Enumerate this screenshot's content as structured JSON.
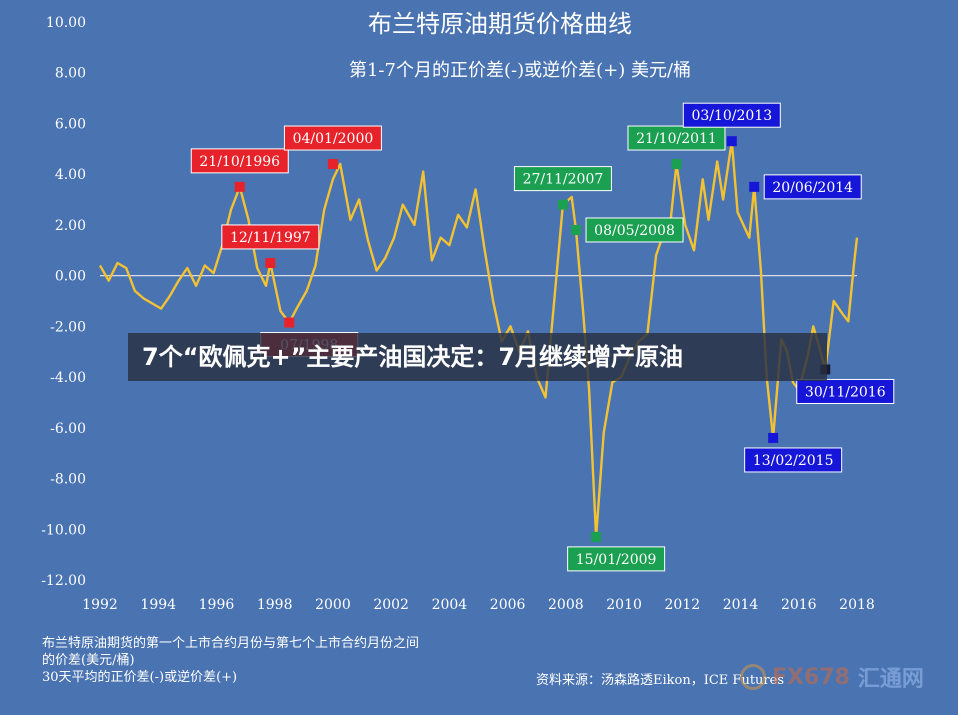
{
  "banner": "7个“欧佩克+”主要产油国决定：7月继续增产原油",
  "footnote": {
    "line1": "布兰特原油期货的第一个上市合约月份与第七个上市合约月份之间",
    "line2": "的价差(美元/桶)",
    "line3": "30天平均的正价差(-)或逆价差(+)"
  },
  "source": "资料来源：汤森路透Eikon，ICE Futures",
  "watermark": {
    "text_a": "FX678",
    "text_b": "汇通网"
  },
  "colors": {
    "background": "#4a73b2",
    "line": "#f2c232",
    "red_marker": "#e8222a",
    "green_marker": "#1aa050",
    "blue_marker": "#1616d8",
    "black_marker": "#1a1a2e"
  },
  "chart_data": {
    "type": "line",
    "title": "布兰特原油期货价格曲线",
    "subtitle": "第1-7个月的正价差(-)或逆价差(+)  美元/桶",
    "xlabel": "",
    "ylabel": "",
    "xlim": [
      1992,
      2018
    ],
    "ylim": [
      -12,
      10
    ],
    "x_ticks": [
      1992,
      1994,
      1996,
      1998,
      2000,
      2002,
      2004,
      2006,
      2008,
      2010,
      2012,
      2014,
      2016,
      2018
    ],
    "y_ticks": [
      "10.00",
      "8.00",
      "6.00",
      "4.00",
      "2.00",
      "0.00",
      "-2.00",
      "-4.00",
      "-6.00",
      "-8.00",
      "-10.00",
      "-12.00"
    ],
    "grid": false,
    "series": [
      {
        "values": [
          [
            1992.0,
            0.4
          ],
          [
            1992.3,
            -0.2
          ],
          [
            1992.6,
            0.5
          ],
          [
            1992.9,
            0.3
          ],
          [
            1993.2,
            -0.6
          ],
          [
            1993.5,
            -0.9
          ],
          [
            1993.8,
            -1.1
          ],
          [
            1994.1,
            -1.3
          ],
          [
            1994.4,
            -0.8
          ],
          [
            1994.7,
            -0.2
          ],
          [
            1995.0,
            0.3
          ],
          [
            1995.3,
            -0.4
          ],
          [
            1995.6,
            0.4
          ],
          [
            1995.9,
            0.1
          ],
          [
            1996.2,
            1.2
          ],
          [
            1996.5,
            2.6
          ],
          [
            1996.8,
            3.5
          ],
          [
            1997.1,
            2.2
          ],
          [
            1997.4,
            0.3
          ],
          [
            1997.7,
            -0.4
          ],
          [
            1997.85,
            0.5
          ],
          [
            1998.2,
            -1.4
          ],
          [
            1998.5,
            -1.85
          ],
          [
            1998.8,
            -1.2
          ],
          [
            1999.1,
            -0.6
          ],
          [
            1999.4,
            0.4
          ],
          [
            1999.7,
            2.6
          ],
          [
            2000.0,
            3.8
          ],
          [
            2000.25,
            4.4
          ],
          [
            2000.6,
            2.2
          ],
          [
            2000.9,
            3.0
          ],
          [
            2001.2,
            1.4
          ],
          [
            2001.5,
            0.2
          ],
          [
            2001.8,
            0.7
          ],
          [
            2002.1,
            1.5
          ],
          [
            2002.4,
            2.8
          ],
          [
            2002.8,
            2.0
          ],
          [
            2003.1,
            4.1
          ],
          [
            2003.4,
            0.6
          ],
          [
            2003.7,
            1.5
          ],
          [
            2004.0,
            1.2
          ],
          [
            2004.3,
            2.4
          ],
          [
            2004.6,
            1.9
          ],
          [
            2004.9,
            3.4
          ],
          [
            2005.2,
            1.1
          ],
          [
            2005.5,
            -1.0
          ],
          [
            2005.8,
            -2.6
          ],
          [
            2006.1,
            -2.0
          ],
          [
            2006.4,
            -3.0
          ],
          [
            2006.7,
            -2.2
          ],
          [
            2007.0,
            -4.0
          ],
          [
            2007.3,
            -4.8
          ],
          [
            2007.6,
            -1.0
          ],
          [
            2007.9,
            2.8
          ],
          [
            2008.2,
            3.1
          ],
          [
            2008.35,
            1.8
          ],
          [
            2008.6,
            -1.5
          ],
          [
            2008.8,
            -4.5
          ],
          [
            2009.04,
            -10.3
          ],
          [
            2009.3,
            -6.2
          ],
          [
            2009.6,
            -4.2
          ],
          [
            2009.9,
            -4.0
          ],
          [
            2010.2,
            -3.2
          ],
          [
            2010.5,
            -2.6
          ],
          [
            2010.8,
            -2.3
          ],
          [
            2011.1,
            0.8
          ],
          [
            2011.4,
            1.8
          ],
          [
            2011.6,
            2.2
          ],
          [
            2011.8,
            4.4
          ],
          [
            2012.1,
            2.0
          ],
          [
            2012.4,
            1.0
          ],
          [
            2012.7,
            3.8
          ],
          [
            2012.9,
            2.2
          ],
          [
            2013.2,
            4.5
          ],
          [
            2013.4,
            3.0
          ],
          [
            2013.7,
            5.3
          ],
          [
            2013.9,
            2.5
          ],
          [
            2014.1,
            2.0
          ],
          [
            2014.3,
            1.5
          ],
          [
            2014.47,
            3.5
          ],
          [
            2014.7,
            0.2
          ],
          [
            2014.9,
            -4.0
          ],
          [
            2015.12,
            -6.4
          ],
          [
            2015.4,
            -2.5
          ],
          [
            2015.6,
            -3.0
          ],
          [
            2015.8,
            -4.2
          ],
          [
            2016.0,
            -4.5
          ],
          [
            2016.3,
            -3.2
          ],
          [
            2016.5,
            -2.0
          ],
          [
            2016.7,
            -2.8
          ],
          [
            2016.91,
            -3.7
          ],
          [
            2017.2,
            -1.0
          ],
          [
            2017.5,
            -1.5
          ],
          [
            2017.7,
            -1.8
          ],
          [
            2017.9,
            0.5
          ],
          [
            2018.0,
            1.5
          ]
        ]
      }
    ],
    "annotations": [
      {
        "label": "21/10/1996",
        "x": 1996.8,
        "y": 3.5,
        "color": "red",
        "side": "above"
      },
      {
        "label": "12/11/1997",
        "x": 1997.85,
        "y": 0.5,
        "color": "red",
        "side": "above"
      },
      {
        "label": "04/01/2000",
        "x": 2000.0,
        "y": 4.4,
        "color": "red",
        "side": "above"
      },
      {
        "label": "07/1998",
        "x": 1998.5,
        "y": -1.85,
        "color": "red",
        "side": "below"
      },
      {
        "label": "27/11/2007",
        "x": 2007.9,
        "y": 2.8,
        "color": "green",
        "side": "above"
      },
      {
        "label": "08/05/2008",
        "x": 2008.35,
        "y": 1.8,
        "color": "green",
        "side": "right"
      },
      {
        "label": "15/01/2009",
        "x": 2009.04,
        "y": -10.3,
        "color": "green",
        "side": "below"
      },
      {
        "label": "21/10/2011",
        "x": 2011.8,
        "y": 4.4,
        "color": "green",
        "side": "above"
      },
      {
        "label": "03/10/2013",
        "x": 2013.7,
        "y": 5.3,
        "color": "blue",
        "side": "above"
      },
      {
        "label": "20/06/2014",
        "x": 2014.47,
        "y": 3.5,
        "color": "blue",
        "side": "right"
      },
      {
        "label": "13/02/2015",
        "x": 2015.12,
        "y": -6.4,
        "color": "blue",
        "side": "below"
      },
      {
        "label": "30/11/2016",
        "x": 2016.91,
        "y": -3.7,
        "color": "black",
        "side": "below"
      }
    ]
  }
}
